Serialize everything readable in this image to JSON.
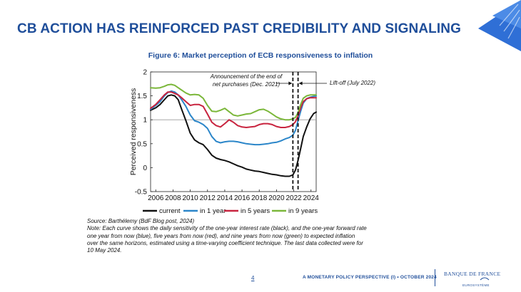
{
  "slide": {
    "title": "CB ACTION HAS REINFORCED PAST CREDIBILITY AND SIGNALING",
    "accent_color": "#1f4e9a"
  },
  "figure_title": "Figure 6: Market perception of ECB responsiveness to inflation",
  "chart_data": {
    "type": "line",
    "title": "Figure 6: Market perception of ECB responsiveness to inflation",
    "xlabel": "",
    "ylabel": "Perceived responsiveness",
    "xlim": [
      2005.4,
      2024.6
    ],
    "ylim": [
      -0.5,
      2
    ],
    "xticks": [
      2006,
      2008,
      2010,
      2012,
      2014,
      2016,
      2018,
      2020,
      2022,
      2024
    ],
    "yticks": [
      -0.5,
      0,
      0.5,
      1,
      1.5,
      2
    ],
    "reference_line": 1,
    "series": [
      {
        "name": "current",
        "color": "#111111",
        "x": [
          2005.4,
          2006,
          2006.5,
          2007,
          2007.4,
          2007.8,
          2008.2,
          2008.6,
          2009,
          2009.5,
          2010,
          2010.5,
          2011,
          2011.5,
          2012,
          2012.5,
          2013,
          2013.5,
          2014,
          2014.5,
          2015,
          2015.5,
          2016,
          2016.5,
          2017,
          2017.5,
          2018,
          2018.5,
          2019,
          2019.5,
          2020,
          2020.5,
          2021,
          2021.5,
          2021.9,
          2022.2,
          2022.5,
          2022.8,
          2023.1,
          2023.5,
          2023.9,
          2024.3,
          2024.6
        ],
        "values": [
          1.2,
          1.25,
          1.32,
          1.42,
          1.5,
          1.52,
          1.5,
          1.42,
          1.22,
          0.98,
          0.72,
          0.58,
          0.52,
          0.48,
          0.38,
          0.26,
          0.2,
          0.17,
          0.15,
          0.12,
          0.08,
          0.04,
          0.01,
          -0.03,
          -0.05,
          -0.07,
          -0.08,
          -0.1,
          -0.12,
          -0.14,
          -0.15,
          -0.17,
          -0.18,
          -0.18,
          -0.15,
          -0.05,
          0.15,
          0.4,
          0.65,
          0.85,
          1.02,
          1.13,
          1.16
        ]
      },
      {
        "name": "in 1 year",
        "color": "#2b86c9",
        "x": [
          2005.4,
          2006,
          2006.5,
          2007,
          2007.4,
          2007.8,
          2008.2,
          2008.6,
          2009,
          2009.5,
          2010,
          2010.5,
          2011,
          2011.5,
          2012,
          2012.5,
          2013,
          2013.5,
          2014,
          2014.5,
          2015,
          2015.5,
          2016,
          2016.5,
          2017,
          2017.5,
          2018,
          2018.5,
          2019,
          2019.5,
          2020,
          2020.5,
          2021,
          2021.5,
          2021.9,
          2022.2,
          2022.5,
          2022.8,
          2023.1,
          2023.5,
          2023.9,
          2024.3,
          2024.6
        ],
        "values": [
          1.22,
          1.3,
          1.38,
          1.5,
          1.57,
          1.6,
          1.58,
          1.52,
          1.42,
          1.28,
          1.1,
          0.98,
          0.95,
          0.9,
          0.82,
          0.65,
          0.55,
          0.52,
          0.54,
          0.55,
          0.55,
          0.54,
          0.52,
          0.5,
          0.49,
          0.48,
          0.48,
          0.49,
          0.5,
          0.52,
          0.53,
          0.56,
          0.6,
          0.63,
          0.68,
          0.78,
          0.98,
          1.18,
          1.35,
          1.44,
          1.47,
          1.49,
          1.5
        ]
      },
      {
        "name": "in 5 years",
        "color": "#c8243f",
        "x": [
          2005.4,
          2006,
          2006.5,
          2007,
          2007.4,
          2007.8,
          2008.2,
          2008.6,
          2009,
          2009.5,
          2010,
          2010.5,
          2011,
          2011.5,
          2012,
          2012.5,
          2013,
          2013.5,
          2014,
          2014.5,
          2015,
          2015.5,
          2016,
          2016.5,
          2017,
          2017.5,
          2018,
          2018.5,
          2019,
          2019.5,
          2020,
          2020.5,
          2021,
          2021.5,
          2021.9,
          2022.2,
          2022.5,
          2022.8,
          2023.1,
          2023.5,
          2023.9,
          2024.3,
          2024.6
        ],
        "values": [
          1.24,
          1.32,
          1.42,
          1.52,
          1.58,
          1.58,
          1.55,
          1.52,
          1.46,
          1.38,
          1.3,
          1.32,
          1.32,
          1.28,
          1.12,
          0.95,
          0.88,
          0.85,
          0.92,
          1.0,
          0.95,
          0.88,
          0.85,
          0.84,
          0.85,
          0.86,
          0.9,
          0.92,
          0.92,
          0.9,
          0.86,
          0.84,
          0.84,
          0.86,
          0.9,
          0.96,
          1.08,
          1.25,
          1.38,
          1.44,
          1.46,
          1.46,
          1.46
        ]
      },
      {
        "name": "in 9 years",
        "color": "#7bb73a",
        "x": [
          2005.4,
          2006,
          2006.5,
          2007,
          2007.4,
          2007.8,
          2008.2,
          2008.6,
          2009,
          2009.5,
          2010,
          2010.5,
          2011,
          2011.5,
          2012,
          2012.5,
          2013,
          2013.5,
          2014,
          2014.5,
          2015,
          2015.5,
          2016,
          2016.5,
          2017,
          2017.5,
          2018,
          2018.5,
          2019,
          2019.5,
          2020,
          2020.5,
          2021,
          2021.5,
          2021.9,
          2022.2,
          2022.5,
          2022.8,
          2023.1,
          2023.5,
          2023.9,
          2024.3,
          2024.6
        ],
        "values": [
          1.67,
          1.66,
          1.67,
          1.7,
          1.73,
          1.74,
          1.72,
          1.67,
          1.62,
          1.56,
          1.52,
          1.53,
          1.52,
          1.45,
          1.3,
          1.18,
          1.17,
          1.2,
          1.24,
          1.17,
          1.1,
          1.08,
          1.1,
          1.12,
          1.13,
          1.17,
          1.21,
          1.22,
          1.18,
          1.12,
          1.06,
          1.02,
          1.0,
          1.0,
          1.02,
          1.05,
          1.15,
          1.32,
          1.45,
          1.5,
          1.52,
          1.52,
          1.52
        ]
      }
    ],
    "vlines": [
      {
        "x": 2021.9,
        "label": "Announcement of the end of net purchases (Dec. 2021)"
      },
      {
        "x": 2022.5,
        "label": "Lift-off (July 2022)"
      }
    ],
    "annotations": {
      "announcement_line1": "Announcement of the end of",
      "announcement_line2": "net purchases (Dec. 2021)",
      "liftoff": "Lift-off (July 2022)"
    },
    "legend": [
      "current",
      "in 1 year",
      "in 5 years",
      "in 9 years"
    ],
    "legend_position": "bottom"
  },
  "source": {
    "line1": "Source: Barthélemy (BdF Blog post, 2024)",
    "line2": "Note: Each curve shows the daily sensitivity of the one-year interest rate (black), and the one-year forward rate",
    "line3": "one year from now (blue), five years from now (red), and nine years from now (green) to expected inflation",
    "line4": "over the same horizons, estimated using a time-varying coefficient technique. The last data collected were for",
    "line5": "10 May 2024."
  },
  "footer": {
    "page_number": "4",
    "text": "A MONETARY POLICY PERSPECTIVE (I) • OCTOBER 2024",
    "logo_name": "BANQUE DE FRANCE",
    "logo_sub": "EUROSYSTÈME"
  }
}
